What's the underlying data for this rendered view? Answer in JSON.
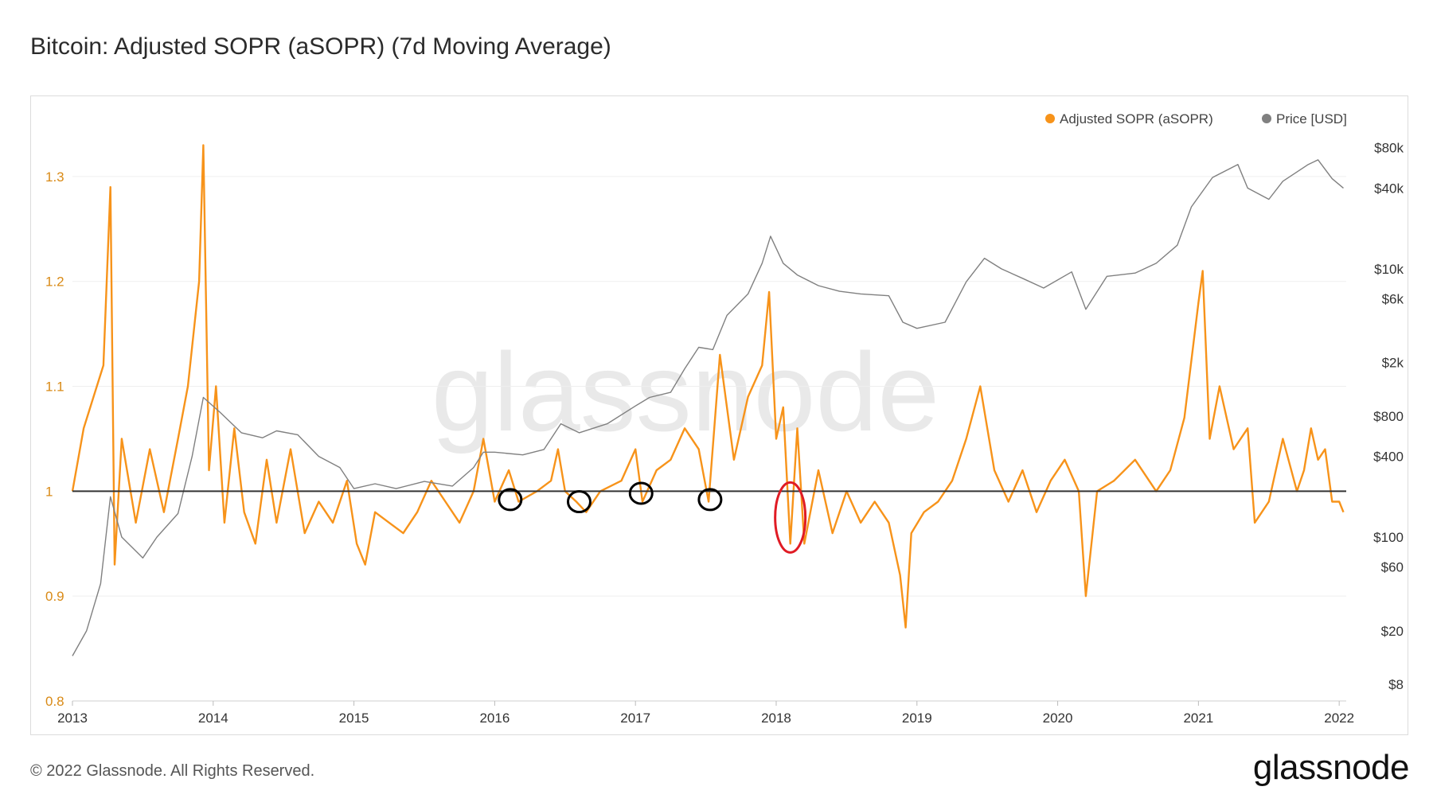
{
  "page": {
    "title": "Bitcoin: Adjusted SOPR (aSOPR) (7d Moving Average)",
    "footer": "© 2022 Glassnode. All Rights Reserved.",
    "brand": "glassnode"
  },
  "chart_data": {
    "type": "line",
    "watermark": "glassnode",
    "legend": [
      {
        "name": "Adjusted SOPR (aSOPR)",
        "color": "#f7931a"
      },
      {
        "name": "Price [USD]",
        "color": "#808080"
      }
    ],
    "x_ticks": [
      "2013",
      "2014",
      "2015",
      "2016",
      "2017",
      "2018",
      "2019",
      "2020",
      "2021",
      "2022"
    ],
    "x_range": [
      2013.0,
      2022.05
    ],
    "y_left": {
      "ticks": [
        "0.8",
        "0.9",
        "1",
        "1.1",
        "1.2",
        "1.3"
      ],
      "range": [
        0.8,
        1.35
      ],
      "color": "#d98a16"
    },
    "y_right": {
      "ticks": [
        {
          "label": "$8",
          "value": 8
        },
        {
          "label": "$20",
          "value": 20
        },
        {
          "label": "$60",
          "value": 60
        },
        {
          "label": "$100",
          "value": 100
        },
        {
          "label": "$400",
          "value": 400
        },
        {
          "label": "$800",
          "value": 800
        },
        {
          "label": "$2k",
          "value": 2000
        },
        {
          "label": "$6k",
          "value": 6000
        },
        {
          "label": "$10k",
          "value": 10000
        },
        {
          "label": "$40k",
          "value": 40000
        },
        {
          "label": "$80k",
          "value": 80000
        }
      ],
      "scale": "log",
      "range": [
        6,
        120000
      ]
    },
    "reference_line": 1.0,
    "series": [
      {
        "name": "Adjusted SOPR (aSOPR)",
        "axis": "left",
        "color": "#f7931a",
        "points": [
          [
            2013.0,
            1.0
          ],
          [
            2013.08,
            1.06
          ],
          [
            2013.15,
            1.09
          ],
          [
            2013.22,
            1.12
          ],
          [
            2013.27,
            1.29
          ],
          [
            2013.3,
            0.93
          ],
          [
            2013.35,
            1.05
          ],
          [
            2013.45,
            0.97
          ],
          [
            2013.55,
            1.04
          ],
          [
            2013.65,
            0.98
          ],
          [
            2013.75,
            1.05
          ],
          [
            2013.82,
            1.1
          ],
          [
            2013.9,
            1.2
          ],
          [
            2013.93,
            1.33
          ],
          [
            2013.97,
            1.02
          ],
          [
            2014.02,
            1.1
          ],
          [
            2014.08,
            0.97
          ],
          [
            2014.15,
            1.06
          ],
          [
            2014.22,
            0.98
          ],
          [
            2014.3,
            0.95
          ],
          [
            2014.38,
            1.03
          ],
          [
            2014.45,
            0.97
          ],
          [
            2014.55,
            1.04
          ],
          [
            2014.65,
            0.96
          ],
          [
            2014.75,
            0.99
          ],
          [
            2014.85,
            0.97
          ],
          [
            2014.95,
            1.01
          ],
          [
            2015.02,
            0.95
          ],
          [
            2015.08,
            0.93
          ],
          [
            2015.15,
            0.98
          ],
          [
            2015.25,
            0.97
          ],
          [
            2015.35,
            0.96
          ],
          [
            2015.45,
            0.98
          ],
          [
            2015.55,
            1.01
          ],
          [
            2015.65,
            0.99
          ],
          [
            2015.75,
            0.97
          ],
          [
            2015.85,
            1.0
          ],
          [
            2015.92,
            1.05
          ],
          [
            2016.0,
            0.99
          ],
          [
            2016.1,
            1.02
          ],
          [
            2016.17,
            0.99
          ],
          [
            2016.3,
            1.0
          ],
          [
            2016.4,
            1.01
          ],
          [
            2016.45,
            1.04
          ],
          [
            2016.5,
            1.0
          ],
          [
            2016.58,
            0.99
          ],
          [
            2016.65,
            0.98
          ],
          [
            2016.75,
            1.0
          ],
          [
            2016.9,
            1.01
          ],
          [
            2017.0,
            1.04
          ],
          [
            2017.05,
            0.99
          ],
          [
            2017.15,
            1.02
          ],
          [
            2017.25,
            1.03
          ],
          [
            2017.35,
            1.06
          ],
          [
            2017.45,
            1.04
          ],
          [
            2017.52,
            0.99
          ],
          [
            2017.6,
            1.13
          ],
          [
            2017.7,
            1.03
          ],
          [
            2017.8,
            1.09
          ],
          [
            2017.9,
            1.12
          ],
          [
            2017.95,
            1.19
          ],
          [
            2018.0,
            1.05
          ],
          [
            2018.05,
            1.08
          ],
          [
            2018.1,
            0.95
          ],
          [
            2018.15,
            1.06
          ],
          [
            2018.2,
            0.95
          ],
          [
            2018.3,
            1.02
          ],
          [
            2018.4,
            0.96
          ],
          [
            2018.5,
            1.0
          ],
          [
            2018.6,
            0.97
          ],
          [
            2018.7,
            0.99
          ],
          [
            2018.8,
            0.97
          ],
          [
            2018.88,
            0.92
          ],
          [
            2018.92,
            0.87
          ],
          [
            2018.96,
            0.96
          ],
          [
            2019.05,
            0.98
          ],
          [
            2019.15,
            0.99
          ],
          [
            2019.25,
            1.01
          ],
          [
            2019.35,
            1.05
          ],
          [
            2019.45,
            1.1
          ],
          [
            2019.55,
            1.02
          ],
          [
            2019.65,
            0.99
          ],
          [
            2019.75,
            1.02
          ],
          [
            2019.85,
            0.98
          ],
          [
            2019.95,
            1.01
          ],
          [
            2020.05,
            1.03
          ],
          [
            2020.15,
            1.0
          ],
          [
            2020.2,
            0.9
          ],
          [
            2020.28,
            1.0
          ],
          [
            2020.4,
            1.01
          ],
          [
            2020.55,
            1.03
          ],
          [
            2020.7,
            1.0
          ],
          [
            2020.8,
            1.02
          ],
          [
            2020.9,
            1.07
          ],
          [
            2021.0,
            1.18
          ],
          [
            2021.03,
            1.21
          ],
          [
            2021.08,
            1.05
          ],
          [
            2021.15,
            1.1
          ],
          [
            2021.25,
            1.04
          ],
          [
            2021.35,
            1.06
          ],
          [
            2021.4,
            0.97
          ],
          [
            2021.5,
            0.99
          ],
          [
            2021.6,
            1.05
          ],
          [
            2021.7,
            1.0
          ],
          [
            2021.75,
            1.02
          ],
          [
            2021.8,
            1.06
          ],
          [
            2021.85,
            1.03
          ],
          [
            2021.9,
            1.04
          ],
          [
            2021.95,
            0.99
          ],
          [
            2022.0,
            0.99
          ],
          [
            2022.03,
            0.98
          ]
        ]
      },
      {
        "name": "Price [USD]",
        "axis": "right",
        "color": "#808080",
        "points": [
          [
            2013.0,
            13
          ],
          [
            2013.1,
            20
          ],
          [
            2013.2,
            45
          ],
          [
            2013.27,
            200
          ],
          [
            2013.35,
            100
          ],
          [
            2013.5,
            70
          ],
          [
            2013.6,
            100
          ],
          [
            2013.75,
            150
          ],
          [
            2013.85,
            400
          ],
          [
            2013.93,
            1100
          ],
          [
            2014.05,
            850
          ],
          [
            2014.2,
            600
          ],
          [
            2014.35,
            550
          ],
          [
            2014.45,
            620
          ],
          [
            2014.6,
            580
          ],
          [
            2014.75,
            400
          ],
          [
            2014.9,
            330
          ],
          [
            2015.0,
            230
          ],
          [
            2015.15,
            250
          ],
          [
            2015.3,
            230
          ],
          [
            2015.5,
            260
          ],
          [
            2015.7,
            240
          ],
          [
            2015.85,
            330
          ],
          [
            2015.92,
            430
          ],
          [
            2016.0,
            430
          ],
          [
            2016.2,
            410
          ],
          [
            2016.35,
            450
          ],
          [
            2016.47,
            700
          ],
          [
            2016.6,
            600
          ],
          [
            2016.8,
            700
          ],
          [
            2017.0,
            950
          ],
          [
            2017.1,
            1100
          ],
          [
            2017.25,
            1200
          ],
          [
            2017.35,
            1800
          ],
          [
            2017.45,
            2600
          ],
          [
            2017.55,
            2500
          ],
          [
            2017.65,
            4500
          ],
          [
            2017.8,
            6500
          ],
          [
            2017.9,
            11000
          ],
          [
            2017.96,
            17500
          ],
          [
            2018.05,
            11000
          ],
          [
            2018.15,
            9000
          ],
          [
            2018.3,
            7500
          ],
          [
            2018.45,
            6800
          ],
          [
            2018.6,
            6500
          ],
          [
            2018.8,
            6300
          ],
          [
            2018.9,
            4000
          ],
          [
            2019.0,
            3600
          ],
          [
            2019.2,
            4000
          ],
          [
            2019.35,
            8000
          ],
          [
            2019.48,
            12000
          ],
          [
            2019.6,
            10000
          ],
          [
            2019.75,
            8500
          ],
          [
            2019.9,
            7200
          ],
          [
            2020.1,
            9500
          ],
          [
            2020.2,
            5000
          ],
          [
            2020.35,
            8800
          ],
          [
            2020.55,
            9300
          ],
          [
            2020.7,
            11000
          ],
          [
            2020.85,
            15000
          ],
          [
            2020.95,
            29000
          ],
          [
            2021.1,
            48000
          ],
          [
            2021.28,
            60000
          ],
          [
            2021.35,
            40000
          ],
          [
            2021.5,
            33000
          ],
          [
            2021.6,
            45000
          ],
          [
            2021.78,
            60000
          ],
          [
            2021.85,
            65000
          ],
          [
            2021.95,
            47000
          ],
          [
            2022.03,
            40000
          ]
        ]
      }
    ],
    "annotations": [
      {
        "type": "circle",
        "color": "#000000",
        "x": 2016.11,
        "y": 0.992
      },
      {
        "type": "circle",
        "color": "#000000",
        "x": 2016.6,
        "y": 0.99
      },
      {
        "type": "circle",
        "color": "#000000",
        "x": 2017.04,
        "y": 0.998
      },
      {
        "type": "circle",
        "color": "#000000",
        "x": 2017.53,
        "y": 0.992
      },
      {
        "type": "ellipse",
        "color": "#e01b24",
        "x": 2018.1,
        "y": 0.975
      }
    ]
  }
}
